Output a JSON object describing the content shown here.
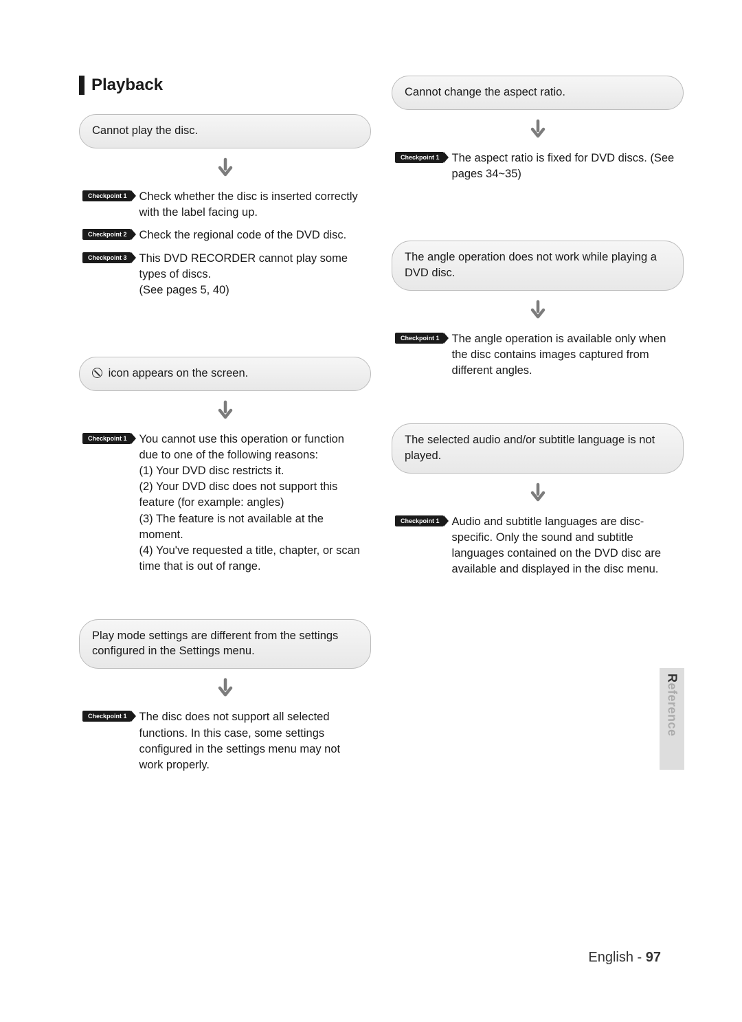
{
  "colors": {
    "bg": "#ffffff",
    "text": "#1a1a1a",
    "pill_border": "#bcbcbc",
    "pill_fill_top": "#f6f6f6",
    "pill_fill_bottom": "#e8e8e8",
    "badge_bg": "#1a1a1a",
    "badge_text": "#ffffff",
    "arrow": "#7c7c7c",
    "sidetab_bg": "#dddddd",
    "sidetab_dark": "#333333",
    "sidetab_light": "rgba(80,80,80,0.35)"
  },
  "typography": {
    "title_fontsize": 24,
    "body_fontsize": 16.5,
    "badge_fontsize": 9,
    "footer_fontsize": 20,
    "sidetab_fontsize": 18
  },
  "section_title": "Playback",
  "side_tab": {
    "dark_char": "R",
    "light_text": "eference"
  },
  "footer": {
    "language": "English",
    "separator": " - ",
    "page": "97"
  },
  "left": {
    "b1": {
      "problem": "Cannot play the disc.",
      "cps": [
        {
          "label": "Checkpoint 1",
          "text": "Check whether the disc is inserted correctly with the label facing up."
        },
        {
          "label": "Checkpoint 2",
          "text": "Check the regional code of the DVD disc."
        },
        {
          "label": "Checkpoint 3",
          "text": "This DVD RECORDER cannot play some types of discs.\n(See pages 5, 40)"
        }
      ]
    },
    "b2": {
      "problem_suffix": "icon appears on the screen.",
      "cps": [
        {
          "label": "Checkpoint 1",
          "text": "You cannot use this operation or function due to one of the following reasons:\n(1) Your DVD disc restricts it.\n(2) Your DVD disc does not support this feature (for example: angles)\n(3) The feature is not available at the moment.\n(4) You've requested a title, chapter, or scan time that is out of range."
        }
      ]
    },
    "b3": {
      "problem": "Play mode settings are different from the settings configured in the Settings menu.",
      "cps": [
        {
          "label": "Checkpoint 1",
          "text": "The disc does not support all selected functions. In this case, some settings configured in the settings menu may not work properly."
        }
      ]
    }
  },
  "right": {
    "b1": {
      "problem": "Cannot change the aspect ratio.",
      "cps": [
        {
          "label": "Checkpoint 1",
          "text": "The aspect ratio is fixed for DVD discs. (See pages 34~35)"
        }
      ]
    },
    "b2": {
      "problem": "The angle operation does not work while playing a DVD disc.",
      "cps": [
        {
          "label": "Checkpoint 1",
          "text": "The angle operation is available only when the disc contains images captured from different angles."
        }
      ]
    },
    "b3": {
      "problem": "The selected audio and/or subtitle language is not played.",
      "cps": [
        {
          "label": "Checkpoint 1",
          "text": "Audio and subtitle languages are disc-specific. Only the sound and subtitle languages contained on the DVD disc are available and displayed in the disc menu."
        }
      ]
    }
  }
}
